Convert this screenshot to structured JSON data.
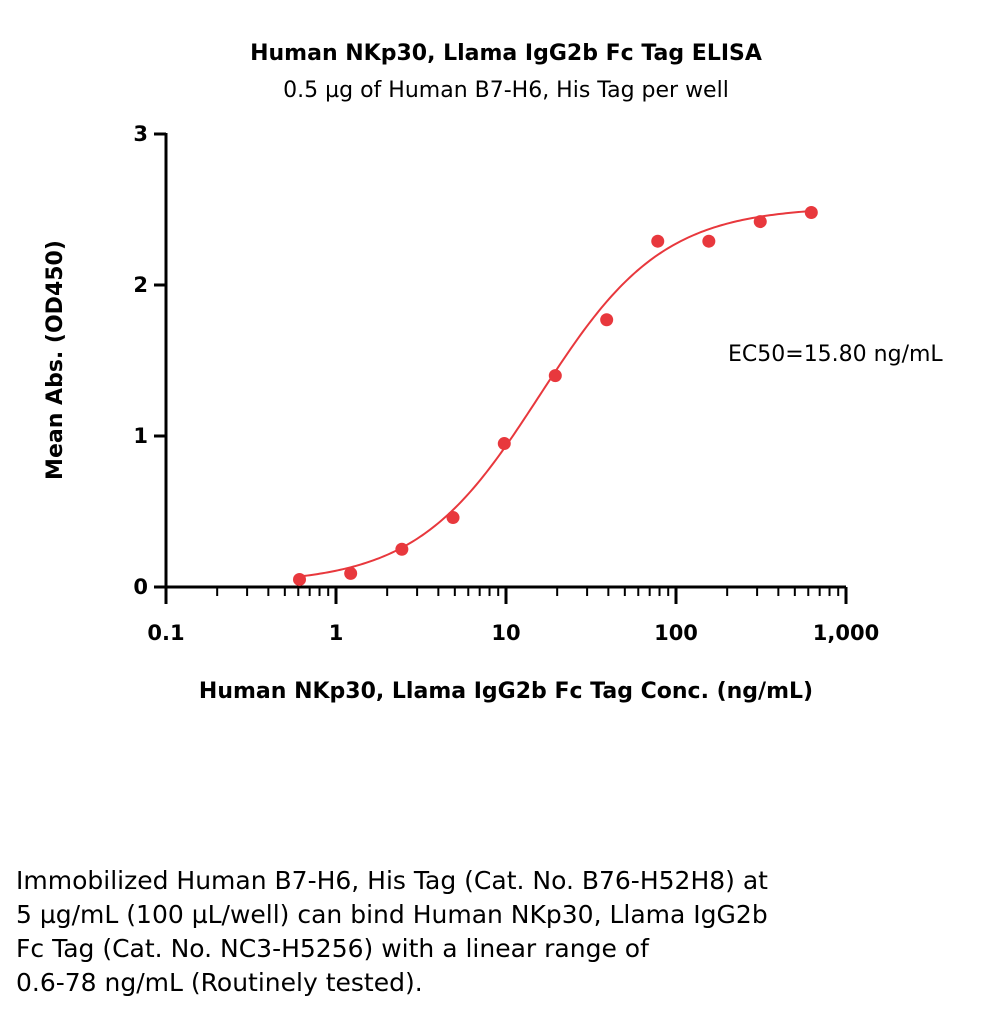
{
  "chart_data": {
    "type": "scatter",
    "title": "Human NKp30, Llama IgG2b Fc Tag ELISA",
    "subtitle": "0.5 µg of Human B7-H6, His Tag per well",
    "xlabel": "Human NKp30, Llama IgG2b Fc Tag Conc. (ng/mL)",
    "ylabel": "Mean Abs. (OD450)",
    "x_scale": "log",
    "xlim": [
      0.1,
      1000
    ],
    "ylim": [
      0,
      3
    ],
    "x_ticks": [
      0.1,
      1,
      10,
      100,
      1000
    ],
    "x_tick_labels": [
      "0.1",
      "1",
      "10",
      "100",
      "1,000"
    ],
    "y_ticks": [
      0,
      1,
      2,
      3
    ],
    "y_tick_labels": [
      "0",
      "1",
      "2",
      "3"
    ],
    "grid": false,
    "color": "#e8383d",
    "series": [
      {
        "x": [
          0.61,
          1.22,
          2.44,
          4.88,
          9.77,
          19.5,
          39.1,
          78.1,
          156,
          313,
          625
        ],
        "y": [
          0.05,
          0.09,
          0.25,
          0.46,
          0.95,
          1.4,
          1.77,
          2.29,
          2.29,
          2.42,
          2.48
        ]
      }
    ],
    "fit": {
      "bottom": 0.02,
      "top": 2.52,
      "ec50": 15.8,
      "hill": 1.2
    },
    "annotation": "EC50=15.80 ng/mL"
  },
  "caption": [
    "Immobilized Human B7-H6, His Tag (Cat. No. B76-H52H8) at",
    "5 µg/mL (100 µL/well) can bind Human NKp30, Llama IgG2b",
    "Fc Tag (Cat. No. NC3-H5256) with a linear range of",
    "0.6-78 ng/mL (Routinely tested)."
  ]
}
